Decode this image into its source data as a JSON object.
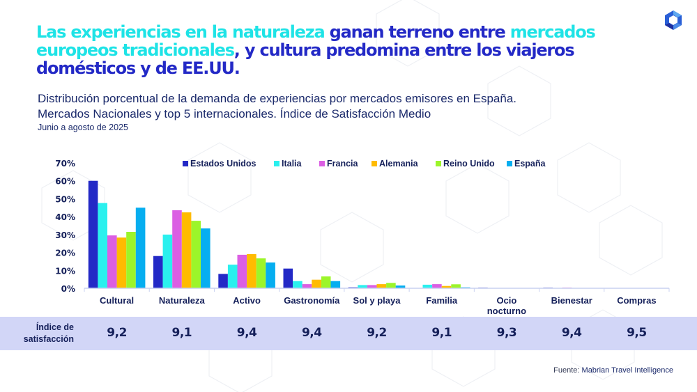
{
  "title": {
    "highlight_1": "Las experiencias en la naturaleza",
    "text_1": " ganan terreno entre ",
    "highlight_2": "mercados europeos tradicionales",
    "text_2": ", y cultura predomina entre los viajeros domésticos y de EE.UU."
  },
  "subtitle": {
    "line1": "Distribución porcentual de la demanda  de experiencias por mercados emisores en España.",
    "line2": "Mercados Nacionales y top 5 internacionales. Índice de Satisfacción Medio",
    "period": "Junio a agosto de 2025"
  },
  "logo": {
    "icon": "hexagon-logo-icon"
  },
  "chart_data": {
    "type": "bar",
    "title": "Distribución porcentual de la demanda de experiencias por mercados emisores en España",
    "xlabel": "",
    "ylabel": "",
    "ylim": [
      0,
      70
    ],
    "yticks": [
      0,
      10,
      20,
      30,
      40,
      50,
      60,
      70
    ],
    "ytick_labels": [
      "0%",
      "10%",
      "20%",
      "30%",
      "40%",
      "50%",
      "60%",
      "70%"
    ],
    "grid": false,
    "legend_position": "top",
    "categories": [
      "Cultural",
      "Naturaleza",
      "Activo",
      "Gastronomía",
      "Sol y playa",
      "Familia",
      "Ocio nocturno",
      "Bienestar",
      "Compras"
    ],
    "category_lines": [
      [
        "Cultural"
      ],
      [
        "Naturaleza"
      ],
      [
        "Activo"
      ],
      [
        "Gastronomía"
      ],
      [
        "Sol y playa"
      ],
      [
        "Familia"
      ],
      [
        "Ocio",
        "nocturno"
      ],
      [
        "Bienestar"
      ],
      [
        "Compras"
      ]
    ],
    "series": [
      {
        "name": "Estados Unidos",
        "color": "#2329c6",
        "values": [
          60,
          18,
          8,
          11,
          0.5,
          0,
          0.4,
          0.4,
          0
        ]
      },
      {
        "name": "Italia",
        "color": "#2af0ee",
        "values": [
          47.6,
          30,
          13.2,
          4,
          1.8,
          2,
          0,
          0,
          0
        ]
      },
      {
        "name": "Francia",
        "color": "#db5fe3",
        "values": [
          29.5,
          43.6,
          18.7,
          2.3,
          1.8,
          2.3,
          0,
          0.4,
          0
        ]
      },
      {
        "name": "Alemania",
        "color": "#ffbb00",
        "values": [
          28.3,
          42.4,
          19.1,
          4.8,
          2.3,
          1.3,
          0,
          0,
          0
        ]
      },
      {
        "name": "Reino Unido",
        "color": "#9cf52a",
        "values": [
          31.5,
          37.7,
          16.7,
          6.6,
          3,
          2.2,
          0,
          0,
          0
        ]
      },
      {
        "name": "España",
        "color": "#06aef0",
        "values": [
          45,
          33.4,
          14.4,
          4,
          1.5,
          0.5,
          0,
          0,
          0
        ]
      }
    ]
  },
  "satisfaction": {
    "label_line1": "Índice de",
    "label_line2": "satisfacción",
    "values": [
      "9,2",
      "9,1",
      "9,4",
      "9,4",
      "9,2",
      "9,1",
      "9,3",
      "9,4",
      "9,5"
    ]
  },
  "source": {
    "prefix": "Fuente: ",
    "name": "Mabrian Travel Intelligence"
  }
}
